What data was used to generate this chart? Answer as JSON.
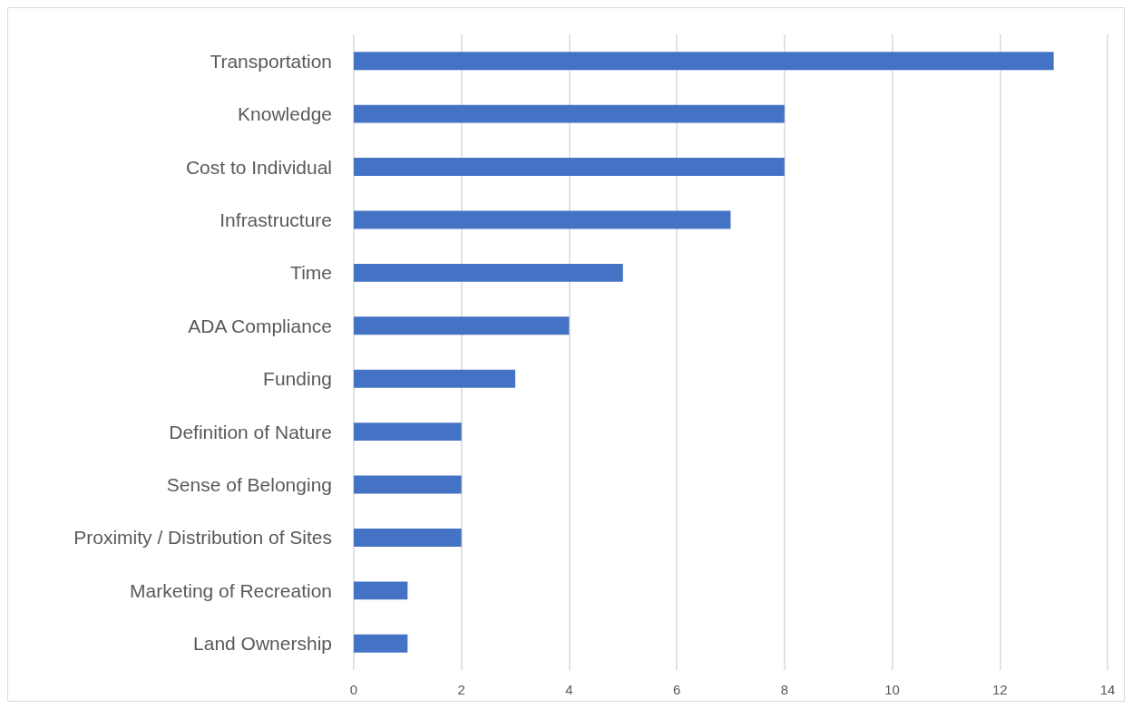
{
  "chart_data": {
    "type": "bar",
    "orientation": "horizontal",
    "categories": [
      "Transportation",
      "Knowledge",
      "Cost to Individual",
      "Infrastructure",
      "Time",
      "ADA Compliance",
      "Funding",
      "Definition of Nature",
      "Sense of Belonging",
      "Proximity / Distribution of Sites",
      "Marketing of Recreation",
      "Land Ownership"
    ],
    "values": [
      13,
      8,
      8,
      7,
      5,
      4,
      3,
      2,
      2,
      2,
      1,
      1
    ],
    "color": "#4472c4",
    "xlim": [
      0,
      14
    ],
    "xticks": [
      0,
      2,
      4,
      6,
      8,
      10,
      12,
      14
    ],
    "grid": "x"
  }
}
